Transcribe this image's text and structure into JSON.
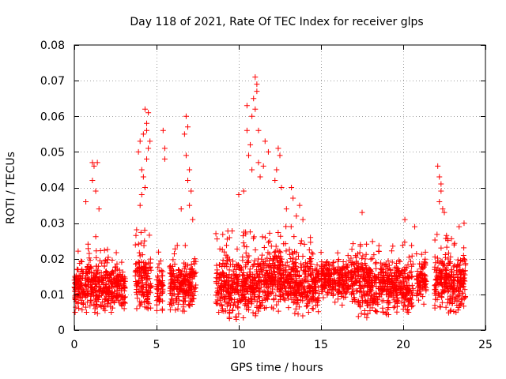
{
  "chart_data": {
    "type": "scatter",
    "title": "Day 118 of 2021, Rate Of TEC Index for receiver glps",
    "xlabel": "GPS time / hours",
    "ylabel": "ROTI / TECUs",
    "xlim": [
      0,
      25
    ],
    "ylim": [
      0,
      0.08
    ],
    "xticks": [
      0,
      5,
      10,
      15,
      20,
      25
    ],
    "xtick_labels": [
      "0",
      "5",
      "10",
      "15",
      "20",
      "25"
    ],
    "yticks": [
      0,
      0.01,
      0.02,
      0.03,
      0.04,
      0.05,
      0.06,
      0.07,
      0.08
    ],
    "ytick_labels": [
      "0",
      "0.01",
      "0.02",
      "0.03",
      "0.04",
      "0.05",
      "0.06",
      "0.07",
      "0.08"
    ],
    "grid": true,
    "marker": "+",
    "color": "#ff0000",
    "clusters": [
      {
        "x_start": 0.0,
        "x_end": 0.7,
        "ymin": 0.005,
        "ymax": 0.024,
        "center": 0.012
      },
      {
        "x_start": 0.7,
        "x_end": 1.3,
        "ymin": 0.005,
        "ymax": 0.025,
        "center": 0.012
      },
      {
        "x_start": 1.3,
        "x_end": 2.0,
        "ymin": 0.004,
        "ymax": 0.028,
        "center": 0.012
      },
      {
        "x_start": 2.0,
        "x_end": 2.6,
        "ymin": 0.005,
        "ymax": 0.023,
        "center": 0.012
      },
      {
        "x_start": 2.6,
        "x_end": 3.1,
        "ymin": 0.006,
        "ymax": 0.022,
        "center": 0.012
      },
      {
        "x_start": 3.7,
        "x_end": 4.3,
        "ymin": 0.006,
        "ymax": 0.03,
        "center": 0.014
      },
      {
        "x_start": 4.3,
        "x_end": 4.7,
        "ymin": 0.006,
        "ymax": 0.03,
        "center": 0.014
      },
      {
        "x_start": 5.0,
        "x_end": 5.4,
        "ymin": 0.005,
        "ymax": 0.022,
        "center": 0.012
      },
      {
        "x_start": 5.8,
        "x_end": 6.5,
        "ymin": 0.005,
        "ymax": 0.025,
        "center": 0.013
      },
      {
        "x_start": 6.5,
        "x_end": 7.4,
        "ymin": 0.005,
        "ymax": 0.025,
        "center": 0.013
      },
      {
        "x_start": 8.6,
        "x_end": 9.4,
        "ymin": 0.005,
        "ymax": 0.028,
        "center": 0.013
      },
      {
        "x_start": 9.4,
        "x_end": 10.4,
        "ymin": 0.003,
        "ymax": 0.028,
        "center": 0.012
      },
      {
        "x_start": 10.4,
        "x_end": 11.4,
        "ymin": 0.004,
        "ymax": 0.03,
        "center": 0.013
      },
      {
        "x_start": 11.4,
        "x_end": 12.4,
        "ymin": 0.005,
        "ymax": 0.03,
        "center": 0.015
      },
      {
        "x_start": 12.4,
        "x_end": 13.4,
        "ymin": 0.005,
        "ymax": 0.03,
        "center": 0.015
      },
      {
        "x_start": 13.4,
        "x_end": 14.2,
        "ymin": 0.004,
        "ymax": 0.026,
        "center": 0.013
      },
      {
        "x_start": 14.2,
        "x_end": 14.9,
        "ymin": 0.005,
        "ymax": 0.027,
        "center": 0.013
      },
      {
        "x_start": 15.0,
        "x_end": 15.9,
        "ymin": 0.007,
        "ymax": 0.023,
        "center": 0.014
      },
      {
        "x_start": 16.0,
        "x_end": 16.7,
        "ymin": 0.007,
        "ymax": 0.022,
        "center": 0.014
      },
      {
        "x_start": 16.8,
        "x_end": 17.8,
        "ymin": 0.003,
        "ymax": 0.026,
        "center": 0.014
      },
      {
        "x_start": 17.8,
        "x_end": 18.9,
        "ymin": 0.004,
        "ymax": 0.025,
        "center": 0.013
      },
      {
        "x_start": 18.9,
        "x_end": 19.9,
        "ymin": 0.004,
        "ymax": 0.026,
        "center": 0.013
      },
      {
        "x_start": 19.9,
        "x_end": 20.6,
        "ymin": 0.005,
        "ymax": 0.026,
        "center": 0.012
      },
      {
        "x_start": 20.8,
        "x_end": 21.4,
        "ymin": 0.007,
        "ymax": 0.022,
        "center": 0.014
      },
      {
        "x_start": 21.9,
        "x_end": 22.7,
        "ymin": 0.006,
        "ymax": 0.027,
        "center": 0.014
      },
      {
        "x_start": 22.7,
        "x_end": 23.5,
        "ymin": 0.003,
        "ymax": 0.028,
        "center": 0.013
      },
      {
        "x_start": 23.5,
        "x_end": 23.8,
        "ymin": 0.006,
        "ymax": 0.03,
        "center": 0.015
      }
    ],
    "spikes": [
      {
        "x": 1.1,
        "y": 0.047
      },
      {
        "x": 1.2,
        "y": 0.046
      },
      {
        "x": 1.4,
        "y": 0.047
      },
      {
        "x": 1.1,
        "y": 0.042
      },
      {
        "x": 0.7,
        "y": 0.036
      },
      {
        "x": 1.5,
        "y": 0.034
      },
      {
        "x": 1.3,
        "y": 0.039
      },
      {
        "x": 3.9,
        "y": 0.05
      },
      {
        "x": 4.0,
        "y": 0.053
      },
      {
        "x": 4.1,
        "y": 0.045
      },
      {
        "x": 4.2,
        "y": 0.055
      },
      {
        "x": 4.3,
        "y": 0.062
      },
      {
        "x": 4.4,
        "y": 0.058
      },
      {
        "x": 4.5,
        "y": 0.061
      },
      {
        "x": 4.4,
        "y": 0.056
      },
      {
        "x": 4.2,
        "y": 0.043
      },
      {
        "x": 4.3,
        "y": 0.04
      },
      {
        "x": 4.5,
        "y": 0.051
      },
      {
        "x": 4.1,
        "y": 0.038
      },
      {
        "x": 4.0,
        "y": 0.035
      },
      {
        "x": 4.4,
        "y": 0.048
      },
      {
        "x": 4.6,
        "y": 0.053
      },
      {
        "x": 5.4,
        "y": 0.056
      },
      {
        "x": 5.5,
        "y": 0.051
      },
      {
        "x": 5.5,
        "y": 0.048
      },
      {
        "x": 6.7,
        "y": 0.055
      },
      {
        "x": 6.8,
        "y": 0.06
      },
      {
        "x": 6.9,
        "y": 0.057
      },
      {
        "x": 6.8,
        "y": 0.049
      },
      {
        "x": 7.0,
        "y": 0.045
      },
      {
        "x": 6.9,
        "y": 0.042
      },
      {
        "x": 7.1,
        "y": 0.039
      },
      {
        "x": 7.0,
        "y": 0.035
      },
      {
        "x": 6.5,
        "y": 0.034
      },
      {
        "x": 7.2,
        "y": 0.031
      },
      {
        "x": 10.0,
        "y": 0.038
      },
      {
        "x": 10.3,
        "y": 0.039
      },
      {
        "x": 10.5,
        "y": 0.056
      },
      {
        "x": 10.5,
        "y": 0.063
      },
      {
        "x": 10.7,
        "y": 0.052
      },
      {
        "x": 10.8,
        "y": 0.06
      },
      {
        "x": 10.9,
        "y": 0.065
      },
      {
        "x": 11.0,
        "y": 0.071
      },
      {
        "x": 11.1,
        "y": 0.069
      },
      {
        "x": 11.1,
        "y": 0.067
      },
      {
        "x": 11.0,
        "y": 0.062
      },
      {
        "x": 11.2,
        "y": 0.056
      },
      {
        "x": 10.6,
        "y": 0.049
      },
      {
        "x": 10.8,
        "y": 0.045
      },
      {
        "x": 11.2,
        "y": 0.047
      },
      {
        "x": 11.3,
        "y": 0.043
      },
      {
        "x": 11.6,
        "y": 0.053
      },
      {
        "x": 11.8,
        "y": 0.05
      },
      {
        "x": 11.5,
        "y": 0.046
      },
      {
        "x": 12.4,
        "y": 0.051
      },
      {
        "x": 12.5,
        "y": 0.049
      },
      {
        "x": 12.3,
        "y": 0.045
      },
      {
        "x": 12.2,
        "y": 0.042
      },
      {
        "x": 12.6,
        "y": 0.04
      },
      {
        "x": 13.2,
        "y": 0.04
      },
      {
        "x": 13.3,
        "y": 0.037
      },
      {
        "x": 12.9,
        "y": 0.034
      },
      {
        "x": 13.7,
        "y": 0.035
      },
      {
        "x": 13.5,
        "y": 0.032
      },
      {
        "x": 13.9,
        "y": 0.031
      },
      {
        "x": 17.5,
        "y": 0.033
      },
      {
        "x": 20.1,
        "y": 0.031
      },
      {
        "x": 20.7,
        "y": 0.029
      },
      {
        "x": 22.1,
        "y": 0.046
      },
      {
        "x": 22.2,
        "y": 0.043
      },
      {
        "x": 22.3,
        "y": 0.041
      },
      {
        "x": 22.3,
        "y": 0.039
      },
      {
        "x": 22.2,
        "y": 0.036
      },
      {
        "x": 22.4,
        "y": 0.034
      },
      {
        "x": 22.5,
        "y": 0.033
      },
      {
        "x": 23.4,
        "y": 0.029
      },
      {
        "x": 23.7,
        "y": 0.03
      }
    ]
  }
}
